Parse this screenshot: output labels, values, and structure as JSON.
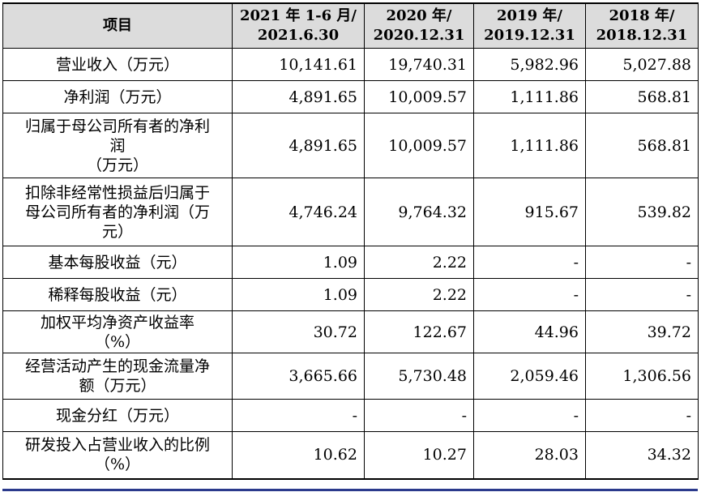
{
  "table": {
    "headers": [
      "项目",
      "2021 年 1-6 月/\n2021.6.30",
      "2020 年/\n2020.12.31",
      "2019 年/\n2019.12.31",
      "2018 年/\n2018.12.31"
    ],
    "header_lines": [
      [
        "项目"
      ],
      [
        "2021 年 1-6 月/",
        "2021.6.30"
      ],
      [
        "2020 年/",
        "2020.12.31"
      ],
      [
        "2019 年/",
        "2019.12.31"
      ],
      [
        "2018 年/",
        "2018.12.31"
      ]
    ],
    "rows": [
      {
        "label_lines": [
          "营业收入（万元）"
        ],
        "values": [
          "10,141.61",
          "19,740.31",
          "5,982.96",
          "5,027.88"
        ]
      },
      {
        "label_lines": [
          "净利润（万元）"
        ],
        "values": [
          "4,891.65",
          "10,009.57",
          "1,111.86",
          "568.81"
        ]
      },
      {
        "label_lines": [
          "归属于母公司所有者的净利",
          "润",
          "（万元）"
        ],
        "values": [
          "4,891.65",
          "10,009.57",
          "1,111.86",
          "568.81"
        ]
      },
      {
        "label_lines": [
          "扣除非经常性损益后归属于",
          "母公司所有者的净利润（万",
          "元）"
        ],
        "values": [
          "4,746.24",
          "9,764.32",
          "915.67",
          "539.82"
        ]
      },
      {
        "label_lines": [
          "基本每股收益（元）"
        ],
        "values": [
          "1.09",
          "2.22",
          "-",
          "-"
        ]
      },
      {
        "label_lines": [
          "稀释每股收益（元）"
        ],
        "values": [
          "1.09",
          "2.22",
          "-",
          "-"
        ]
      },
      {
        "label_lines": [
          "加权平均净资产收益率",
          "（%）"
        ],
        "values": [
          "30.72",
          "122.67",
          "44.96",
          "39.72"
        ]
      },
      {
        "label_lines": [
          "经营活动产生的现金流量净",
          "额（万元）"
        ],
        "values": [
          "3,665.66",
          "5,730.48",
          "2,059.46",
          "1,306.56"
        ]
      },
      {
        "label_lines": [
          "现金分红（万元）"
        ],
        "values": [
          "-",
          "-",
          "-",
          "-"
        ]
      },
      {
        "label_lines": [
          "研发投入占营业收入的比例",
          "（%）"
        ],
        "values": [
          "10.62",
          "10.27",
          "28.03",
          "34.32"
        ]
      }
    ]
  },
  "colors": {
    "header_bg": "#dcdcdc",
    "rule": "#2b3a8c"
  }
}
